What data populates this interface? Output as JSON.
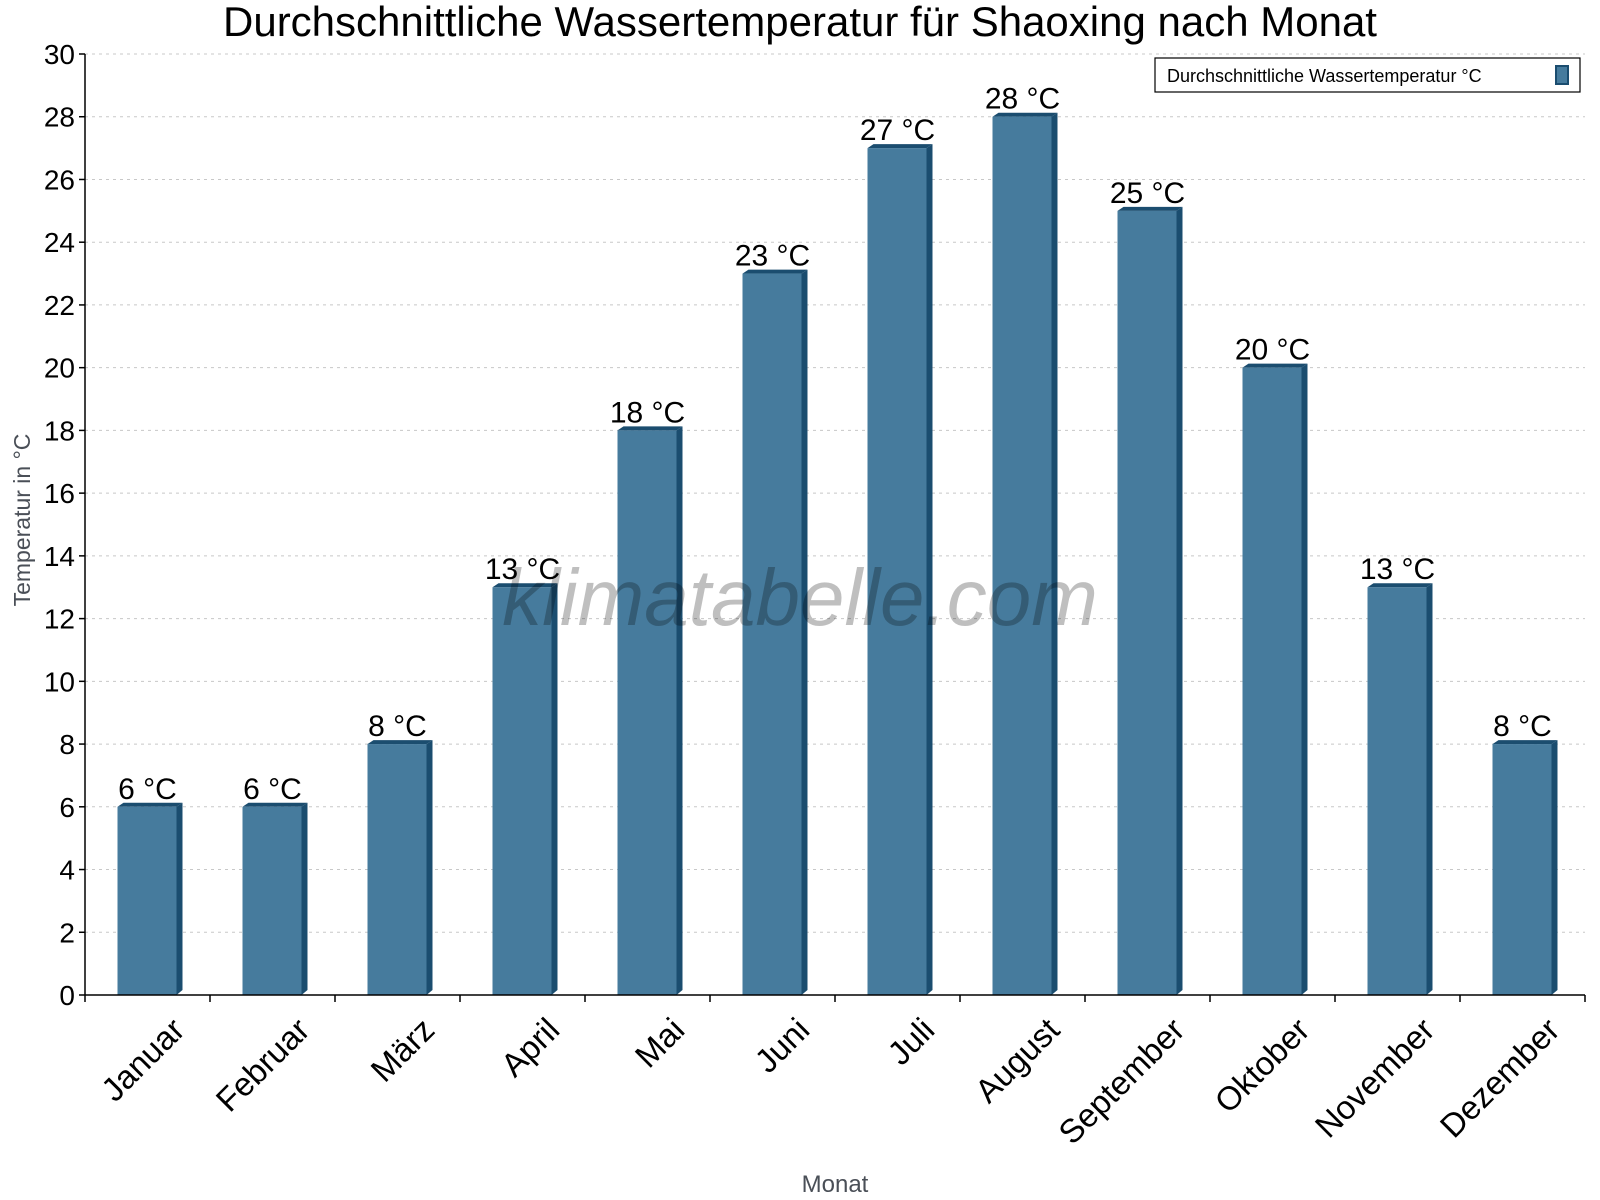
{
  "chart_data": {
    "type": "bar",
    "title": "Durchschnittliche Wassertemperatur für Shaoxing nach Monat",
    "xlabel": "Monat",
    "ylabel": "Temperatur in °C",
    "categories": [
      "Januar",
      "Februar",
      "März",
      "April",
      "Mai",
      "Juni",
      "Juli",
      "August",
      "September",
      "Oktober",
      "November",
      "Dezember"
    ],
    "series": [
      {
        "name": "Durchschnittliche Wassertemperatur °C",
        "values": [
          6,
          6,
          8,
          13,
          18,
          23,
          27,
          28,
          25,
          20,
          13,
          8
        ]
      }
    ],
    "data_labels": [
      "6 °C",
      "6 °C",
      "8 °C",
      "13 °C",
      "18 °C",
      "23 °C",
      "27 °C",
      "28 °C",
      "25 °C",
      "20 °C",
      "13 °C",
      "8 °C"
    ],
    "ylim": [
      0,
      30
    ],
    "yticks": [
      0,
      2,
      4,
      6,
      8,
      10,
      12,
      14,
      16,
      18,
      20,
      22,
      24,
      26,
      28,
      30
    ],
    "grid": true,
    "legend_position": "top-right",
    "colors": {
      "bar": "#467b9d",
      "bar_side": "#1b4d6f",
      "grid": "#c8c8c8"
    },
    "watermark": "klimatabelle.com"
  }
}
